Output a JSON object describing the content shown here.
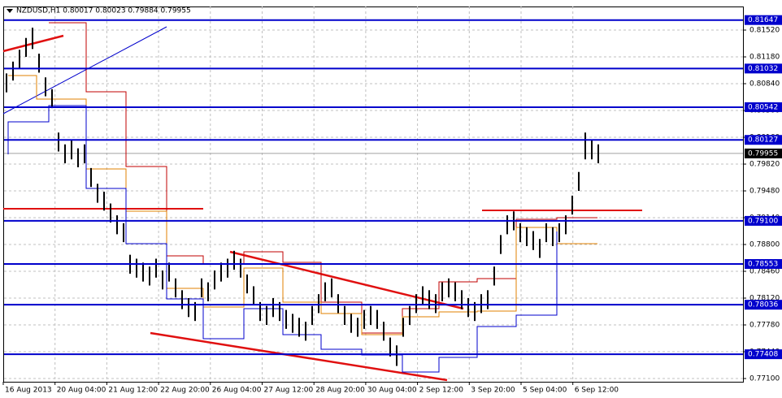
{
  "chart_data": {
    "type": "hlbar",
    "title": "NZDUSD,H1  0.80017 0.80023 0.79884 0.79955",
    "x_labels": [
      "16 Aug 2013",
      "20 Aug 04:00",
      "21 Aug 12:00",
      "22 Aug 20:00",
      "26 Aug 04:00",
      "27 Aug 12:00",
      "28 Aug 20:00",
      "30 Aug 04:00",
      "2 Sep 12:00",
      "3 Sep 20:00",
      "5 Sep 04:00",
      "6 Sep 12:00"
    ],
    "ylim": [
      0.77059,
      0.81819
    ],
    "yticks": [
      {
        "value": 0.8152,
        "label": "0.81520"
      },
      {
        "value": 0.8118,
        "label": "0.81180"
      },
      {
        "value": 0.8084,
        "label": "0.80840"
      },
      {
        "value": 0.805,
        "label": "0.80500"
      },
      {
        "value": 0.8016,
        "label": "0.80160"
      },
      {
        "value": 0.7982,
        "label": "0.79820"
      },
      {
        "value": 0.7948,
        "label": "0.79480"
      },
      {
        "value": 0.7914,
        "label": "0.79140"
      },
      {
        "value": 0.788,
        "label": "0.78800"
      },
      {
        "value": 0.7846,
        "label": "0.78460"
      },
      {
        "value": 0.7812,
        "label": "0.78120"
      },
      {
        "value": 0.7778,
        "label": "0.77780"
      },
      {
        "value": 0.7744,
        "label": "0.77440"
      },
      {
        "value": 0.771,
        "label": "0.77100"
      }
    ],
    "grid": true,
    "color": "#000000",
    "levels": [
      {
        "value": 0.81647,
        "label": "0.81647"
      },
      {
        "value": 0.81032,
        "label": "0.81032"
      },
      {
        "value": 0.80542,
        "label": "0.80542"
      },
      {
        "value": 0.80127,
        "label": "0.80127"
      },
      {
        "value": 0.791,
        "label": "0.79100"
      },
      {
        "value": 0.78553,
        "label": "0.78553"
      },
      {
        "value": 0.78036,
        "label": "0.78036"
      },
      {
        "value": 0.77408,
        "label": "0.77408"
      }
    ],
    "level_color": "#0000cc",
    "current_price": 0.79955,
    "high": [
      0.8097,
      0.8112,
      0.8127,
      0.8142,
      0.8155,
      0.8122,
      0.8092,
      0.8077,
      0.8022,
      0.8007,
      0.8012,
      0.8002,
      0.8007,
      0.7977,
      0.7957,
      0.7947,
      0.7932,
      0.7917,
      0.7907,
      0.7867,
      0.7862,
      0.7857,
      0.7852,
      0.7862,
      0.7847,
      0.7857,
      0.7837,
      0.7822,
      0.7812,
      0.7807,
      0.7837,
      0.7832,
      0.7847,
      0.7857,
      0.7862,
      0.7872,
      0.7862,
      0.7842,
      0.7827,
      0.7807,
      0.7802,
      0.7812,
      0.7807,
      0.7797,
      0.7792,
      0.7787,
      0.7782,
      0.7802,
      0.7817,
      0.7832,
      0.7837,
      0.7817,
      0.7802,
      0.7792,
      0.7787,
      0.7797,
      0.7802,
      0.7797,
      0.7782,
      0.7762,
      0.7752,
      0.7787,
      0.7802,
      0.7817,
      0.7827,
      0.7822,
      0.7817,
      0.7832,
      0.7837,
      0.7832,
      0.7822,
      0.7812,
      0.7807,
      0.7817,
      0.7822,
      0.7852,
      0.7892,
      0.7917,
      0.7922,
      0.7907,
      0.7902,
      0.7897,
      0.7887,
      0.7907,
      0.7902,
      0.7907,
      0.7917,
      0.7942,
      0.7972,
      0.8022,
      0.8012,
      0.8007
    ],
    "low": [
      0.8073,
      0.8088,
      0.8103,
      0.8118,
      0.8128,
      0.8098,
      0.8068,
      0.8053,
      0.7998,
      0.7983,
      0.7988,
      0.7978,
      0.7983,
      0.7953,
      0.7933,
      0.7923,
      0.7908,
      0.7893,
      0.7883,
      0.7843,
      0.7838,
      0.7833,
      0.7828,
      0.7838,
      0.7823,
      0.7833,
      0.7813,
      0.7798,
      0.7788,
      0.7783,
      0.7813,
      0.7808,
      0.7823,
      0.7833,
      0.7838,
      0.7848,
      0.7838,
      0.7818,
      0.7803,
      0.7783,
      0.7778,
      0.7788,
      0.7783,
      0.7773,
      0.7768,
      0.7763,
      0.7758,
      0.7778,
      0.7793,
      0.7808,
      0.7813,
      0.7793,
      0.7778,
      0.7768,
      0.7763,
      0.7773,
      0.7778,
      0.7773,
      0.7758,
      0.7738,
      0.7726,
      0.7763,
      0.7778,
      0.7793,
      0.7803,
      0.7798,
      0.7793,
      0.7808,
      0.7813,
      0.7808,
      0.7798,
      0.7788,
      0.7783,
      0.7793,
      0.7798,
      0.7828,
      0.7868,
      0.7893,
      0.7898,
      0.7883,
      0.7878,
      0.7873,
      0.7863,
      0.7883,
      0.7878,
      0.7883,
      0.7893,
      0.7918,
      0.7948,
      0.7988,
      0.7988,
      0.7983
    ]
  }
}
